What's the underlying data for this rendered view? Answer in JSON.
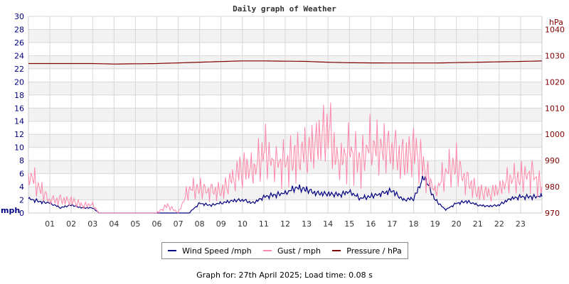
{
  "chart_data": {
    "type": "line",
    "title": "Daily graph of Weather",
    "xlabel": "",
    "ylabel": "mph",
    "y2label": "hPa",
    "x_ticks": [
      "01",
      "02",
      "03",
      "04",
      "05",
      "06",
      "07",
      "08",
      "09",
      "10",
      "11",
      "12",
      "13",
      "14",
      "15",
      "16",
      "17",
      "18",
      "19",
      "20",
      "21",
      "22",
      "23"
    ],
    "y_ticks": [
      0,
      2,
      4,
      6,
      8,
      10,
      12,
      14,
      16,
      18,
      20,
      22,
      24,
      26,
      28,
      30
    ],
    "y2_ticks": [
      970,
      980,
      990,
      1000,
      1010,
      1020,
      1030,
      1040
    ],
    "ylim": [
      0,
      30
    ],
    "y2lim": [
      970,
      1045
    ],
    "grid": true,
    "legend_position": "bottom",
    "series": [
      {
        "name": "Wind Speed /mph",
        "color": "#000080",
        "axis": "left",
        "x": [
          0,
          0.5,
          1,
          1.5,
          2,
          2.5,
          3,
          3.3,
          4,
          5,
          6,
          7,
          7.5,
          8,
          8.5,
          9,
          9.5,
          10,
          10.5,
          11,
          11.5,
          12,
          12.5,
          13,
          13.5,
          14,
          14.5,
          15,
          15.5,
          16,
          16.5,
          17,
          17.5,
          18,
          18.5,
          19,
          19.5,
          20,
          20.5,
          21,
          21.5,
          22,
          22.5,
          23,
          23.5,
          24
        ],
        "values": [
          2.2,
          1.8,
          1.5,
          0.8,
          1.2,
          0.8,
          0.8,
          0,
          0,
          0,
          0,
          0,
          0,
          1.5,
          1.2,
          1.5,
          1.8,
          2,
          1.5,
          2.5,
          2.8,
          3,
          3.8,
          3.5,
          3,
          3,
          2.8,
          3.2,
          2.2,
          2.5,
          3,
          3.5,
          2,
          2.2,
          5.5,
          2,
          0.5,
          1.5,
          1.8,
          1.2,
          1,
          1.2,
          2.2,
          2.5,
          2.5,
          2.5
        ]
      },
      {
        "name": "Gust / mph",
        "color": "#ff88aa",
        "axis": "left",
        "x": [
          0,
          0.5,
          1,
          1.5,
          2,
          2.5,
          3,
          3.3,
          4,
          5,
          6,
          6.5,
          7,
          7.5,
          8,
          8.5,
          9,
          9.5,
          10,
          10.5,
          11,
          11.5,
          12,
          12.5,
          13,
          13.5,
          14,
          14.5,
          15,
          15.5,
          16,
          16.5,
          17,
          17.5,
          18,
          18.5,
          19,
          19.5,
          20,
          20.5,
          21,
          21.5,
          22,
          22.5,
          23,
          23.5,
          24
        ],
        "values": [
          6,
          3.5,
          2,
          2,
          2,
          1.2,
          1.2,
          0,
          0,
          0,
          0,
          1.2,
          0,
          3.5,
          3.5,
          3.5,
          3.5,
          5,
          7,
          6,
          9,
          8,
          8,
          9,
          9,
          10,
          12.5,
          8,
          10,
          8,
          10,
          9,
          10,
          8,
          10.5,
          7,
          3,
          6,
          7,
          5,
          3.5,
          3,
          3.5,
          5,
          5,
          6.5,
          4
        ]
      },
      {
        "name": "Pressure / hPa",
        "color": "#800000",
        "axis": "right",
        "x": [
          0,
          2,
          3,
          4,
          6,
          8,
          10,
          11,
          13,
          14,
          15,
          17,
          19,
          21,
          23,
          24
        ],
        "values": [
          1027,
          1027,
          1027,
          1026.8,
          1027,
          1027.5,
          1028,
          1028,
          1027.8,
          1027.5,
          1027.3,
          1027.2,
          1027.2,
          1027.5,
          1027.8,
          1028
        ]
      }
    ]
  },
  "legend": {
    "items": [
      {
        "label": "Wind Speed /mph",
        "color": "#000080"
      },
      {
        "label": "Gust / mph",
        "color": "#ff88aa"
      },
      {
        "label": "Pressure / hPa",
        "color": "#800000"
      }
    ]
  },
  "footer": "Graph for: 27th April 2025; Load time: 0.08 s"
}
